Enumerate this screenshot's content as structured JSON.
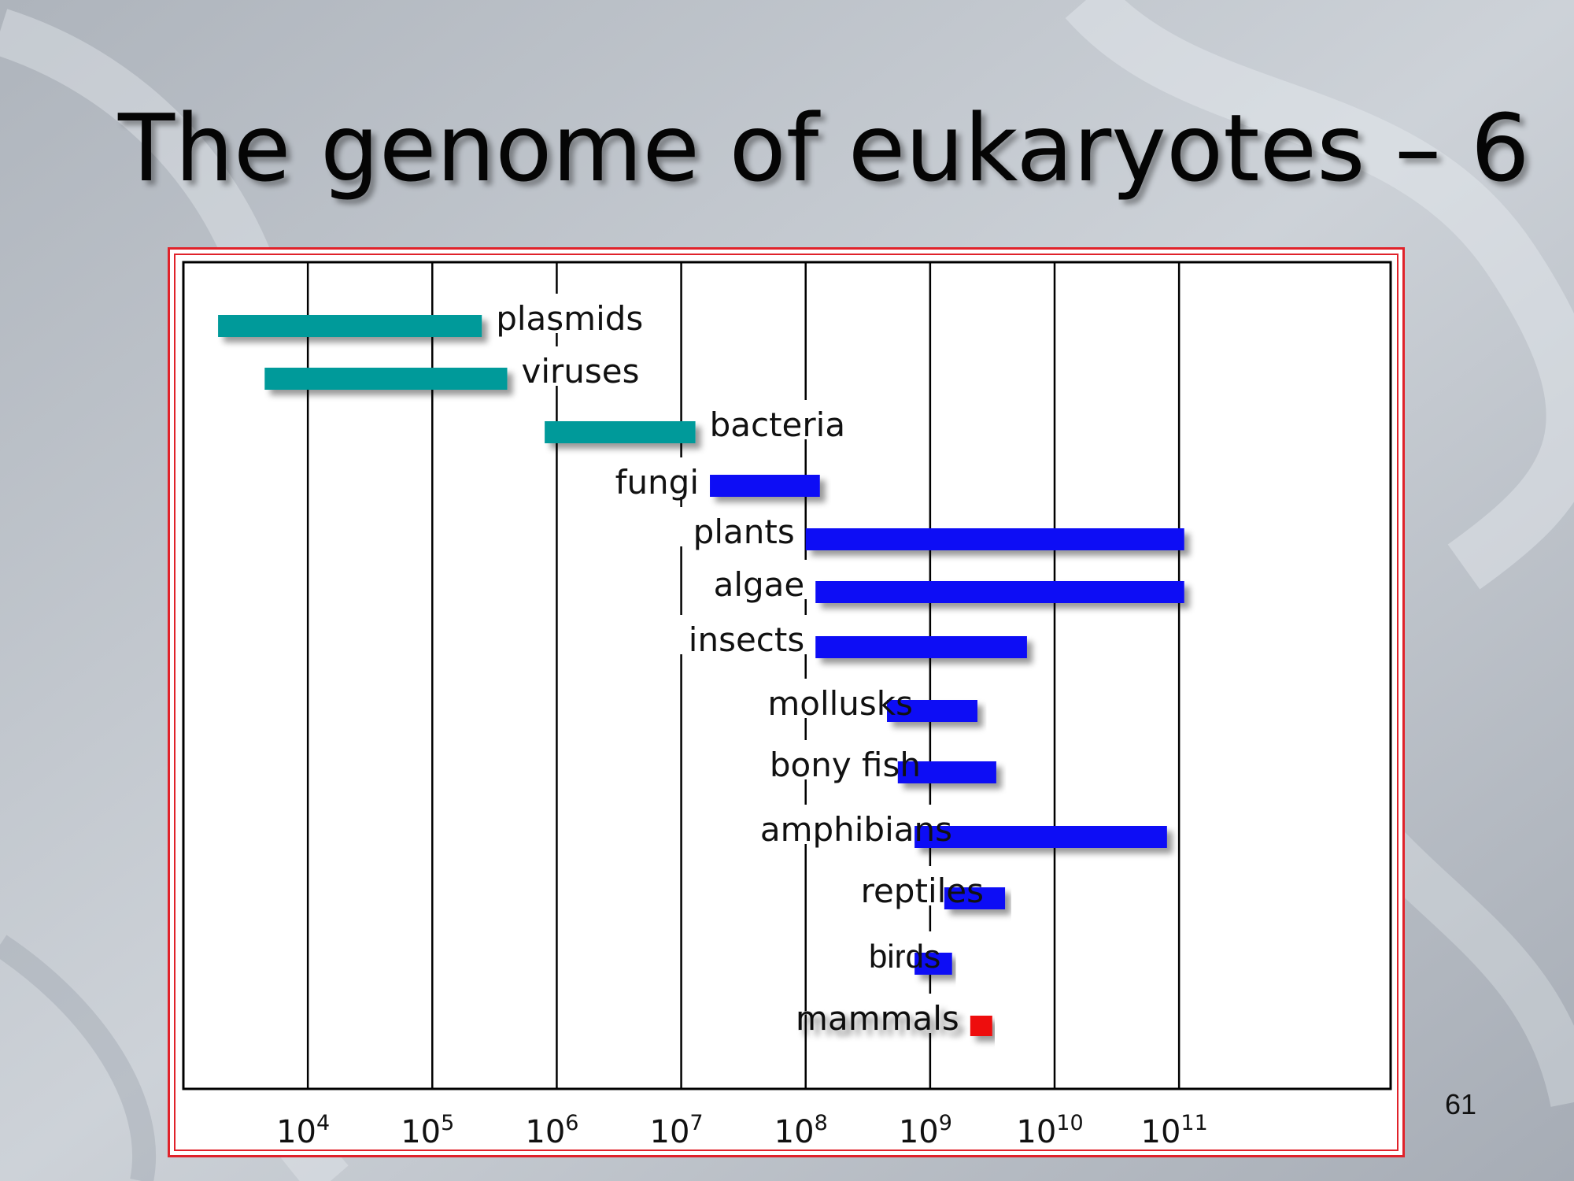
{
  "slide": {
    "title": "The genome of eukaryotes – 6",
    "page_number": "61"
  },
  "colors": {
    "prokaryote_bar": "#069a9a",
    "eukaryote_bar": "#0a0af5",
    "mammal_bar": "#ee1111",
    "frame": "#e0222a"
  },
  "chart_data": {
    "type": "bar",
    "orientation": "horizontal",
    "x_scale": "log10",
    "xlim": [
      1000,
      5000000000000
    ],
    "x_ticks": [
      {
        "base": "10",
        "exp": "4",
        "value": 10000
      },
      {
        "base": "10",
        "exp": "5",
        "value": 100000
      },
      {
        "base": "10",
        "exp": "6",
        "value": 1000000
      },
      {
        "base": "10",
        "exp": "7",
        "value": 10000000
      },
      {
        "base": "10",
        "exp": "8",
        "value": 100000000
      },
      {
        "base": "10",
        "exp": "9",
        "value": 1000000000
      },
      {
        "base": "10",
        "exp": "10",
        "value": 10000000000
      },
      {
        "base": "10",
        "exp": "11",
        "value": 100000000000
      }
    ],
    "grid": "vertical lines",
    "series": [
      {
        "label": "plasmids",
        "min": 1900,
        "max": 250000,
        "color": "prokaryote_bar"
      },
      {
        "label": "viruses",
        "min": 4500,
        "max": 400000,
        "color": "prokaryote_bar"
      },
      {
        "label": "bacteria",
        "min": 800000,
        "max": 13000000,
        "color": "prokaryote_bar"
      },
      {
        "label": "fungi",
        "min": 17000000,
        "max": 130000000,
        "color": "eukaryote_bar"
      },
      {
        "label": "plants",
        "min": 100000000,
        "max": 110000000000,
        "color": "eukaryote_bar"
      },
      {
        "label": "algae",
        "min": 120000000,
        "max": 110000000000,
        "color": "eukaryote_bar"
      },
      {
        "label": "insects",
        "min": 120000000,
        "max": 6000000000,
        "color": "eukaryote_bar"
      },
      {
        "label": "mollusks",
        "min": 450000000,
        "max": 2400000000,
        "color": "eukaryote_bar"
      },
      {
        "label": "bony fish",
        "min": 550000000,
        "max": 3400000000,
        "color": "eukaryote_bar"
      },
      {
        "label": "amphibians",
        "min": 750000000,
        "max": 80000000000,
        "color": "eukaryote_bar"
      },
      {
        "label": "reptiles",
        "min": 1300000000,
        "max": 4000000000,
        "color": "eukaryote_bar"
      },
      {
        "label": "birds",
        "min": 750000000,
        "max": 1500000000,
        "color": "eukaryote_bar"
      },
      {
        "label": "mammals",
        "min": 2100000000,
        "max": 3000000000,
        "color": "mammal_bar"
      }
    ]
  }
}
